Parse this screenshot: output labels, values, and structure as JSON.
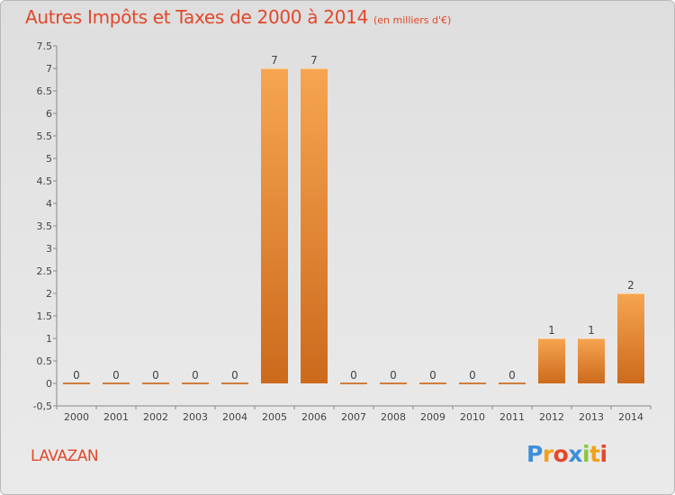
{
  "header": {
    "title": "Autres Impôts et Taxes de 2000 à 2014",
    "subtitle": "(en milliers d'€)"
  },
  "footer": {
    "commune": "LAVAZAN",
    "logo_letters": [
      {
        "ch": "P",
        "color": "#3d8fd8"
      },
      {
        "ch": "r",
        "color": "#f1a21c"
      },
      {
        "ch": "o",
        "color": "#e5462c"
      },
      {
        "ch": "x",
        "color": "#3d8fd8"
      },
      {
        "ch": "i",
        "color": "#8dc63f"
      },
      {
        "ch": "t",
        "color": "#f1a21c"
      },
      {
        "ch": "i",
        "color": "#e5462c"
      }
    ]
  },
  "colors": {
    "bar_light": "#f6a551",
    "bar_dark": "#cc6a1c",
    "title": "#e0482a",
    "axis": "#888888",
    "label": "#444444"
  },
  "chart_data": {
    "type": "bar",
    "title": "Autres Impôts et Taxes de 2000 à 2014",
    "subtitle": "(en milliers d'€)",
    "categories": [
      "2000",
      "2001",
      "2002",
      "2003",
      "2004",
      "2005",
      "2006",
      "2007",
      "2008",
      "2009",
      "2010",
      "2011",
      "2012",
      "2013",
      "2014"
    ],
    "values": [
      0,
      0,
      0,
      0,
      0,
      7,
      7,
      0,
      0,
      0,
      0,
      0,
      1,
      1,
      2
    ],
    "data_labels": [
      "0",
      "0",
      "0",
      "0",
      "0",
      "7",
      "7",
      "0",
      "0",
      "0",
      "0",
      "0",
      "1",
      "1",
      "2"
    ],
    "ylim": [
      -0.5,
      7.5
    ],
    "yticks": [
      "-0,5",
      "0",
      "0.5",
      "1",
      "1.5",
      "2",
      "2.5",
      "3",
      "3.5",
      "4",
      "4.5",
      "5",
      "5.5",
      "6",
      "6.5",
      "7",
      "7.5"
    ],
    "ytick_values": [
      -0.5,
      0,
      0.5,
      1,
      1.5,
      2,
      2.5,
      3,
      3.5,
      4,
      4.5,
      5,
      5.5,
      6,
      6.5,
      7,
      7.5
    ],
    "xlabel": "",
    "ylabel": "",
    "grid": false,
    "legend": "none"
  }
}
